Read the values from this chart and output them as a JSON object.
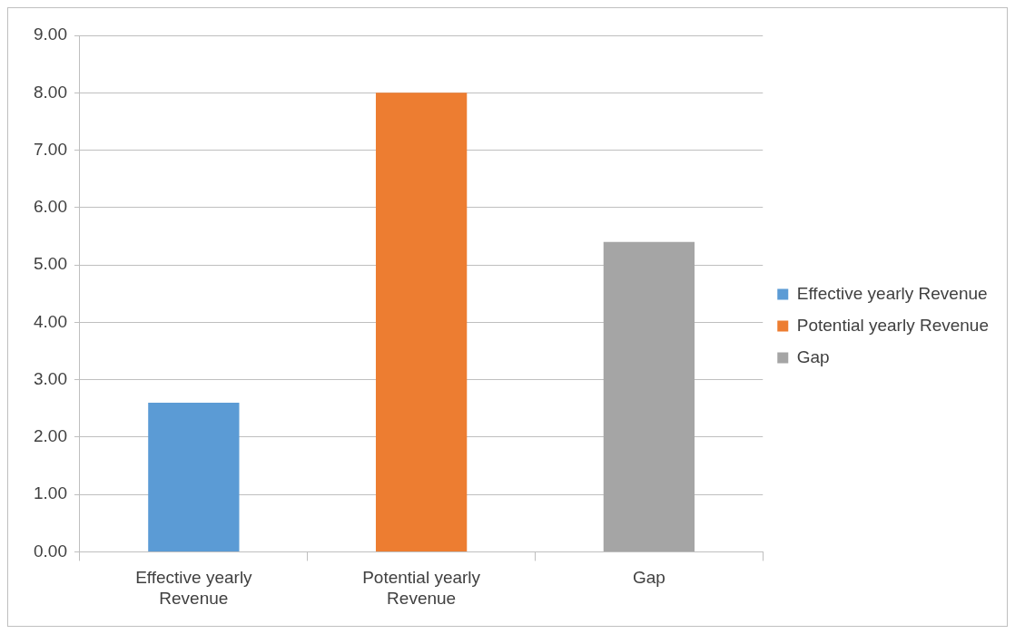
{
  "chart_data": {
    "type": "bar",
    "categories": [
      "Effective yearly Revenue",
      "Potential yearly Revenue",
      "Gap"
    ],
    "series": [
      {
        "name": "Effective yearly Revenue",
        "color": "#5b9bd5",
        "values": [
          2.6,
          null,
          null
        ]
      },
      {
        "name": "Potential yearly Revenue",
        "color": "#ed7d31",
        "values": [
          null,
          8.0,
          null
        ]
      },
      {
        "name": "Gap",
        "color": "#a5a5a5",
        "values": [
          null,
          null,
          5.4
        ]
      }
    ],
    "ylim": [
      0,
      9
    ],
    "yticks": [
      {
        "value": 0,
        "label": "0.00"
      },
      {
        "value": 1,
        "label": "1.00"
      },
      {
        "value": 2,
        "label": "2.00"
      },
      {
        "value": 3,
        "label": "3.00"
      },
      {
        "value": 4,
        "label": "4.00"
      },
      {
        "value": 5,
        "label": "5.00"
      },
      {
        "value": 6,
        "label": "6.00"
      },
      {
        "value": 7,
        "label": "7.00"
      },
      {
        "value": 8,
        "label": "8.00"
      },
      {
        "value": 9,
        "label": "9.00"
      }
    ],
    "grid": "y",
    "legend": "right"
  }
}
